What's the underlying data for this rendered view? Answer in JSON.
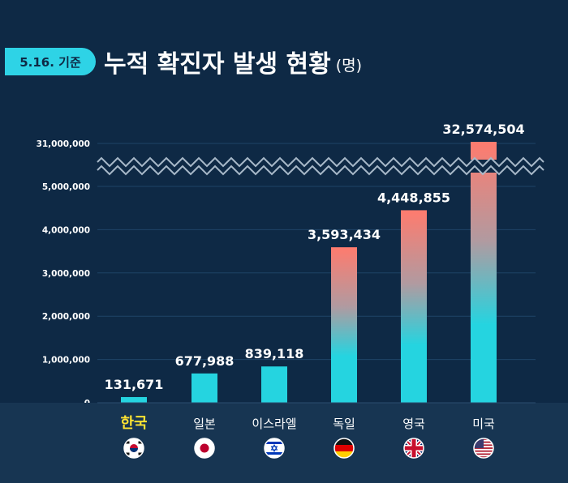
{
  "badge": "5.16. 기준",
  "title": "누적 확진자 발생 현황",
  "unit": "(명)",
  "colors": {
    "background": "#0e2945",
    "badge": "#2ed3e6",
    "bar_bottom": "#25d4e0",
    "bar_top": "#ff7b6e",
    "highlight_label": "#ffe332"
  },
  "chart_data": {
    "type": "bar",
    "title": "누적 확진자 발생 현황",
    "categories": [
      "한국",
      "일본",
      "이스라엘",
      "독일",
      "영국",
      "미국"
    ],
    "values": [
      131671,
      677988,
      839118,
      3593434,
      4448855,
      32574504
    ],
    "value_labels": [
      "131,671",
      "677,988",
      "839,118",
      "3,593,434",
      "4,448,855",
      "32,574,504"
    ],
    "flag_icons": [
      "korea-flag-icon",
      "japan-flag-icon",
      "israel-flag-icon",
      "germany-flag-icon",
      "uk-flag-icon",
      "usa-flag-icon"
    ],
    "highlight_category": "한국",
    "yticks": [
      "0",
      "1,000,000",
      "2,000,000",
      "3,000,000",
      "4,000,000",
      "5,000,000",
      "31,000,000"
    ],
    "ylim": [
      0,
      5000000
    ],
    "axis_break": [
      5000000,
      31000000
    ],
    "grid": true
  }
}
